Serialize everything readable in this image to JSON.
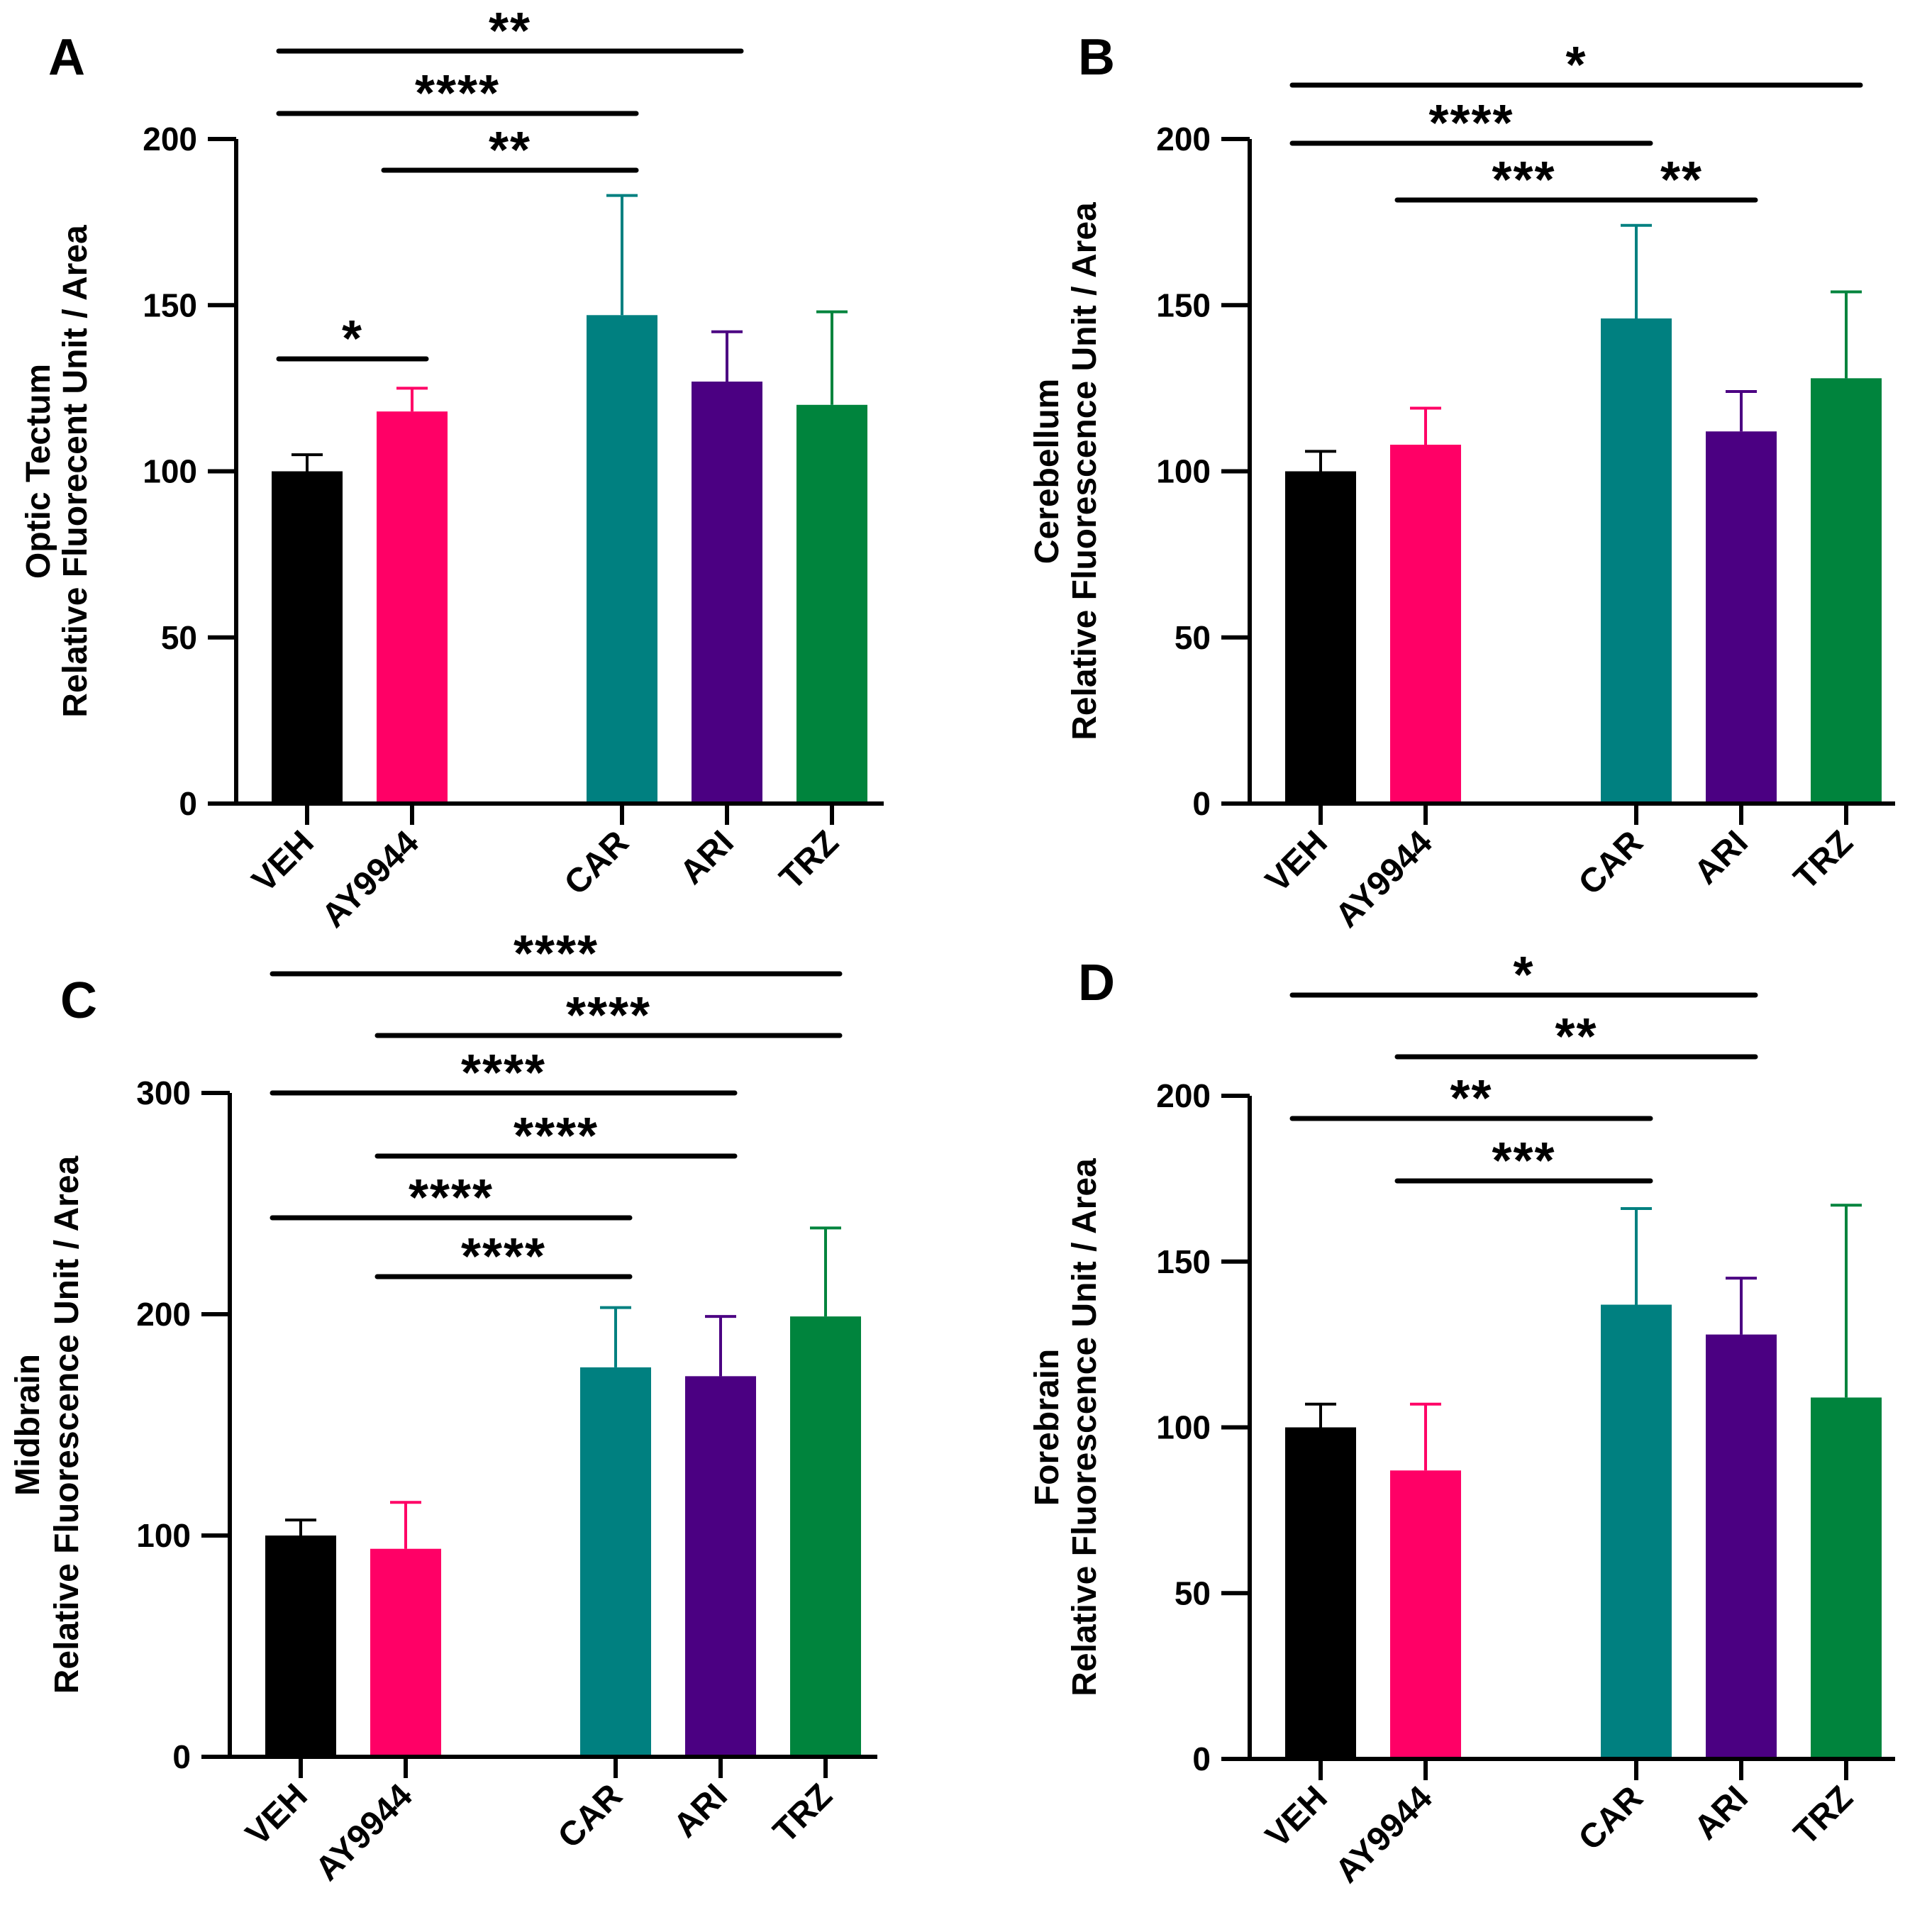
{
  "chart_data": [
    {
      "panel": "A",
      "type": "bar",
      "ylabel_line1": "Optic Tectum",
      "ylabel_line2": "Relative Fluorecent Unit / Area",
      "ylim": [
        0,
        200
      ],
      "yticks": [
        0,
        50,
        100,
        150,
        200
      ],
      "categories": [
        "VEH",
        "AY9944",
        "CAR",
        "ARI",
        "TRZ"
      ],
      "values": [
        100,
        118,
        147,
        127,
        120
      ],
      "errors": [
        5,
        7,
        36,
        15,
        28
      ],
      "colors": [
        "#000000",
        "#ff0066",
        "#008080",
        "#4b0082",
        "#00843d"
      ],
      "significance": [
        {
          "from": "VEH",
          "to": "ARI",
          "label": "**"
        },
        {
          "from": "VEH",
          "to": "CAR",
          "label": "****"
        },
        {
          "from": "AY9944",
          "to": "CAR",
          "label": "**"
        },
        {
          "from": "VEH",
          "to": "AY9944",
          "label": "*"
        }
      ]
    },
    {
      "panel": "B",
      "type": "bar",
      "ylabel_line1": "Cerebellum",
      "ylabel_line2": "Relative Fluorescence Unit / Area",
      "ylim": [
        0,
        200
      ],
      "yticks": [
        0,
        50,
        100,
        150,
        200
      ],
      "categories": [
        "VEH",
        "AY9944",
        "CAR",
        "ARI",
        "TRZ"
      ],
      "values": [
        100,
        108,
        146,
        112,
        128
      ],
      "errors": [
        6,
        11,
        28,
        12,
        26
      ],
      "colors": [
        "#000000",
        "#ff0066",
        "#008080",
        "#4b0082",
        "#00843d"
      ],
      "significance": [
        {
          "from": "VEH",
          "to": "TRZ",
          "label": "*"
        },
        {
          "from": "VEH",
          "to": "CAR",
          "label": "****"
        },
        {
          "from": "AY9944",
          "to": "CAR",
          "label": "***"
        },
        {
          "from": "CAR",
          "to": "ARI",
          "label": "**"
        }
      ]
    },
    {
      "panel": "C",
      "type": "bar",
      "ylabel_line1": "Midbrain",
      "ylabel_line2": "Relative Fluorescence Unit / Area",
      "ylim": [
        0,
        300
      ],
      "yticks": [
        0,
        100,
        200,
        300
      ],
      "categories": [
        "VEH",
        "AY9944",
        "CAR",
        "ARI",
        "TRZ"
      ],
      "values": [
        100,
        94,
        176,
        172,
        199
      ],
      "errors": [
        7,
        21,
        27,
        27,
        40
      ],
      "colors": [
        "#000000",
        "#ff0066",
        "#008080",
        "#4b0082",
        "#00843d"
      ],
      "significance": [
        {
          "from": "VEH",
          "to": "TRZ",
          "label": "****"
        },
        {
          "from": "AY9944",
          "to": "TRZ",
          "label": "****"
        },
        {
          "from": "VEH",
          "to": "ARI",
          "label": "****"
        },
        {
          "from": "AY9944",
          "to": "ARI",
          "label": "****"
        },
        {
          "from": "VEH",
          "to": "CAR",
          "label": "****"
        },
        {
          "from": "AY9944",
          "to": "CAR",
          "label": "****"
        }
      ]
    },
    {
      "panel": "D",
      "type": "bar",
      "ylabel_line1": "Forebrain",
      "ylabel_line2": "Relative Fluorescence Unit / Area",
      "ylim": [
        0,
        200
      ],
      "yticks": [
        0,
        50,
        100,
        150,
        200
      ],
      "categories": [
        "VEH",
        "AY9944",
        "CAR",
        "ARI",
        "TRZ"
      ],
      "values": [
        100,
        87,
        137,
        128,
        109
      ],
      "errors": [
        7,
        20,
        29,
        17,
        58
      ],
      "colors": [
        "#000000",
        "#ff0066",
        "#008080",
        "#4b0082",
        "#00843d"
      ],
      "significance": [
        {
          "from": "VEH",
          "to": "ARI",
          "label": "*"
        },
        {
          "from": "AY9944",
          "to": "ARI",
          "label": "**"
        },
        {
          "from": "VEH",
          "to": "CAR",
          "label": "**"
        },
        {
          "from": "AY9944",
          "to": "CAR",
          "label": "***"
        }
      ]
    }
  ]
}
